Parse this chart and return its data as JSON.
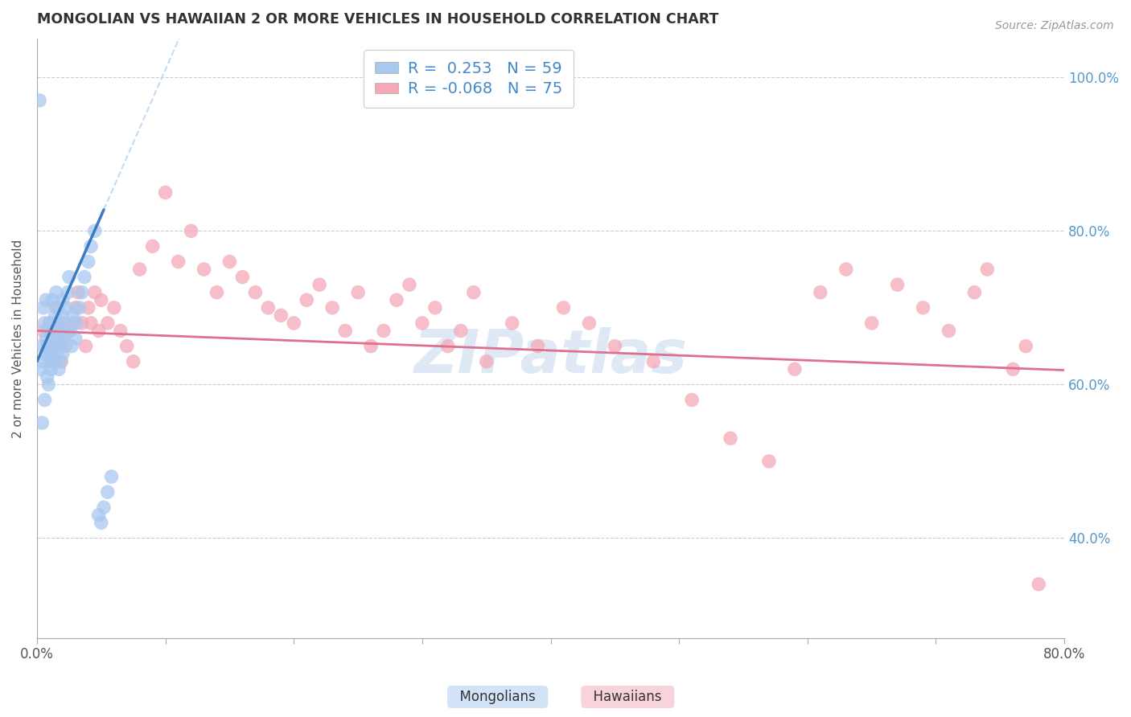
{
  "title": "MONGOLIAN VS HAWAIIAN 2 OR MORE VEHICLES IN HOUSEHOLD CORRELATION CHART",
  "source": "Source: ZipAtlas.com",
  "ylabel": "2 or more Vehicles in Household",
  "xlabel_mongolians": "Mongolians",
  "xlabel_hawaiians": "Hawaiians",
  "watermark": "ZIPatlas",
  "mongolian_R": 0.253,
  "mongolian_N": 59,
  "hawaiian_R": -0.068,
  "hawaiian_N": 75,
  "xlim": [
    0.0,
    0.8
  ],
  "ylim": [
    0.27,
    1.05
  ],
  "xticks": [
    0.0,
    0.1,
    0.2,
    0.3,
    0.4,
    0.5,
    0.6,
    0.7,
    0.8
  ],
  "xticklabels": [
    "0.0%",
    "",
    "",
    "",
    "",
    "",
    "",
    "",
    "80.0%"
  ],
  "yticks": [
    0.4,
    0.6,
    0.8,
    1.0
  ],
  "yticklabels": [
    "40.0%",
    "60.0%",
    "80.0%",
    "100.0%"
  ],
  "mongolian_color": "#a8c8f0",
  "hawaiian_color": "#f4a8b8",
  "mongolian_line_color": "#3a7abf",
  "hawaiian_line_color": "#e07090",
  "watermark_color": "#c8d8f0",
  "mon_x": [
    0.002,
    0.003,
    0.004,
    0.004,
    0.005,
    0.005,
    0.006,
    0.006,
    0.007,
    0.007,
    0.007,
    0.008,
    0.008,
    0.009,
    0.009,
    0.01,
    0.01,
    0.01,
    0.011,
    0.011,
    0.012,
    0.012,
    0.013,
    0.013,
    0.014,
    0.014,
    0.015,
    0.015,
    0.016,
    0.016,
    0.017,
    0.017,
    0.018,
    0.018,
    0.019,
    0.019,
    0.02,
    0.02,
    0.021,
    0.022,
    0.023,
    0.024,
    0.025,
    0.026,
    0.027,
    0.028,
    0.03,
    0.031,
    0.033,
    0.035,
    0.037,
    0.04,
    0.042,
    0.045,
    0.048,
    0.05,
    0.052,
    0.055,
    0.058
  ],
  "mon_y": [
    0.97,
    0.62,
    0.55,
    0.65,
    0.7,
    0.63,
    0.68,
    0.58,
    0.64,
    0.71,
    0.66,
    0.65,
    0.61,
    0.67,
    0.6,
    0.63,
    0.68,
    0.64,
    0.65,
    0.62,
    0.66,
    0.71,
    0.67,
    0.63,
    0.69,
    0.65,
    0.72,
    0.64,
    0.7,
    0.66,
    0.68,
    0.62,
    0.67,
    0.63,
    0.65,
    0.69,
    0.71,
    0.64,
    0.66,
    0.68,
    0.7,
    0.72,
    0.74,
    0.67,
    0.65,
    0.69,
    0.66,
    0.68,
    0.7,
    0.72,
    0.74,
    0.76,
    0.78,
    0.8,
    0.43,
    0.42,
    0.44,
    0.46,
    0.48
  ],
  "haw_x": [
    0.005,
    0.008,
    0.01,
    0.012,
    0.015,
    0.017,
    0.018,
    0.019,
    0.02,
    0.022,
    0.025,
    0.028,
    0.03,
    0.032,
    0.035,
    0.038,
    0.04,
    0.042,
    0.045,
    0.048,
    0.05,
    0.055,
    0.06,
    0.065,
    0.07,
    0.075,
    0.08,
    0.09,
    0.1,
    0.11,
    0.12,
    0.13,
    0.14,
    0.15,
    0.16,
    0.17,
    0.18,
    0.19,
    0.2,
    0.21,
    0.22,
    0.23,
    0.24,
    0.25,
    0.26,
    0.27,
    0.28,
    0.29,
    0.3,
    0.31,
    0.32,
    0.33,
    0.34,
    0.35,
    0.37,
    0.39,
    0.41,
    0.43,
    0.45,
    0.48,
    0.51,
    0.54,
    0.57,
    0.59,
    0.61,
    0.63,
    0.65,
    0.67,
    0.69,
    0.71,
    0.73,
    0.74,
    0.76,
    0.77,
    0.78
  ],
  "haw_y": [
    0.67,
    0.65,
    0.68,
    0.63,
    0.7,
    0.65,
    0.68,
    0.63,
    0.66,
    0.65,
    0.67,
    0.68,
    0.7,
    0.72,
    0.68,
    0.65,
    0.7,
    0.68,
    0.72,
    0.67,
    0.71,
    0.68,
    0.7,
    0.67,
    0.65,
    0.63,
    0.75,
    0.78,
    0.85,
    0.76,
    0.8,
    0.75,
    0.72,
    0.76,
    0.74,
    0.72,
    0.7,
    0.69,
    0.68,
    0.71,
    0.73,
    0.7,
    0.67,
    0.72,
    0.65,
    0.67,
    0.71,
    0.73,
    0.68,
    0.7,
    0.65,
    0.67,
    0.72,
    0.63,
    0.68,
    0.65,
    0.7,
    0.68,
    0.65,
    0.63,
    0.58,
    0.53,
    0.5,
    0.62,
    0.72,
    0.75,
    0.68,
    0.73,
    0.7,
    0.67,
    0.72,
    0.75,
    0.62,
    0.65,
    0.34
  ]
}
